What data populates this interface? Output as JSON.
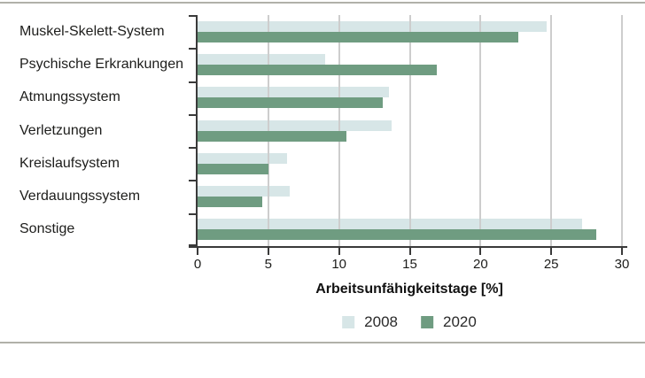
{
  "chart_data": {
    "type": "bar",
    "orientation": "horizontal",
    "title": "",
    "xlabel": "Arbeitsunfähigkeitstage [%]",
    "ylabel": "",
    "xlim": [
      0,
      30
    ],
    "xticks": [
      0,
      5,
      10,
      15,
      20,
      25,
      30
    ],
    "grid": true,
    "legend_position": "bottom-center",
    "categories": [
      "Muskel-Skelett-System",
      "Psychische Erkrankungen",
      "Atmungssystem",
      "Verletzungen",
      "Kreislaufsystem",
      "Verdauungssystem",
      "Sonstige"
    ],
    "series": [
      {
        "name": "2008",
        "color": "#d7e6e7",
        "values": [
          24.7,
          9.0,
          13.5,
          13.7,
          6.3,
          6.5,
          27.2
        ]
      },
      {
        "name": "2020",
        "color": "#6f9c81",
        "values": [
          22.7,
          16.9,
          13.1,
          10.5,
          5.0,
          4.6,
          28.2
        ]
      }
    ]
  },
  "colors": {
    "background": "#ffffff",
    "frame_line": "#b1b1a9",
    "axis": "#3a3a3a",
    "grid": "#cdcdcd",
    "text": "#1d1d1b"
  }
}
